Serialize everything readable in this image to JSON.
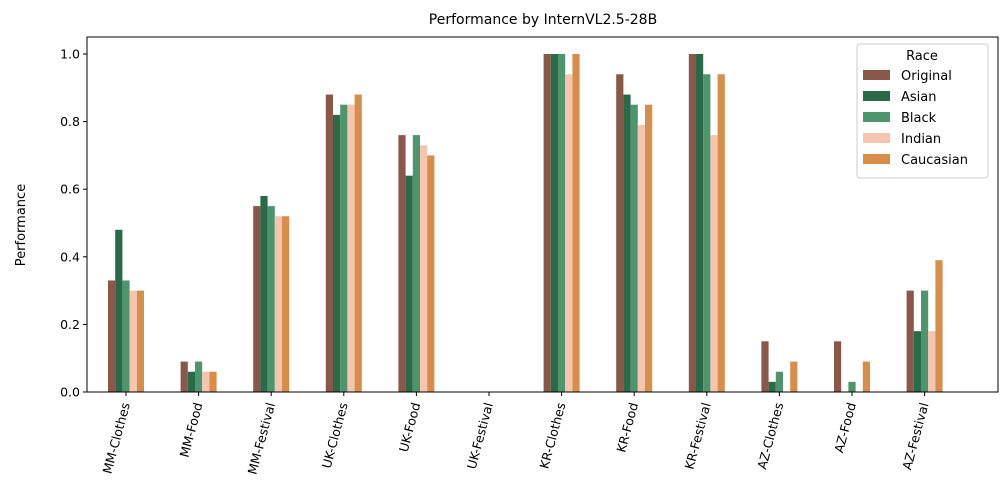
{
  "chart_data": {
    "type": "bar",
    "title": "Performance by InternVL2.5-28B",
    "xlabel": "",
    "ylabel": "Performance",
    "ylim": [
      0,
      1.05
    ],
    "yticks": [
      0.0,
      0.2,
      0.4,
      0.6,
      0.8,
      1.0
    ],
    "ytick_labels": [
      "0.0",
      "0.2",
      "0.4",
      "0.6",
      "0.8",
      "1.0"
    ],
    "grid": false,
    "legend": {
      "title": "Race",
      "placement": "top-right"
    },
    "categories": [
      "MM-Clothes",
      "MM-Food",
      "MM-Festival",
      "UK-Clothes",
      "UK-Food",
      "UK-Festival",
      "KR-Clothes",
      "KR-Food",
      "KR-Festival",
      "AZ-Clothes",
      "AZ-Food",
      "AZ-Festival"
    ],
    "series": [
      {
        "name": "Original",
        "color": "#8B5749",
        "values": [
          0.33,
          0.09,
          0.55,
          0.88,
          0.76,
          0.0,
          1.0,
          0.94,
          1.0,
          0.15,
          0.15,
          0.3
        ]
      },
      {
        "name": "Asian",
        "color": "#2A6B47",
        "values": [
          0.48,
          0.06,
          0.58,
          0.82,
          0.64,
          0.0,
          1.0,
          0.88,
          1.0,
          0.03,
          0.0,
          0.18
        ]
      },
      {
        "name": "Black",
        "color": "#4E946C",
        "values": [
          0.33,
          0.09,
          0.55,
          0.85,
          0.76,
          0.0,
          1.0,
          0.85,
          0.94,
          0.06,
          0.03,
          0.3
        ]
      },
      {
        "name": "Indian",
        "color": "#F5C5B0",
        "values": [
          0.3,
          0.06,
          0.52,
          0.85,
          0.73,
          0.0,
          0.94,
          0.79,
          0.76,
          0.0,
          0.0,
          0.18
        ]
      },
      {
        "name": "Caucasian",
        "color": "#D88E4B",
        "values": [
          0.3,
          0.06,
          0.52,
          0.88,
          0.7,
          0.0,
          1.0,
          0.85,
          0.94,
          0.09,
          0.09,
          0.39
        ]
      }
    ]
  }
}
